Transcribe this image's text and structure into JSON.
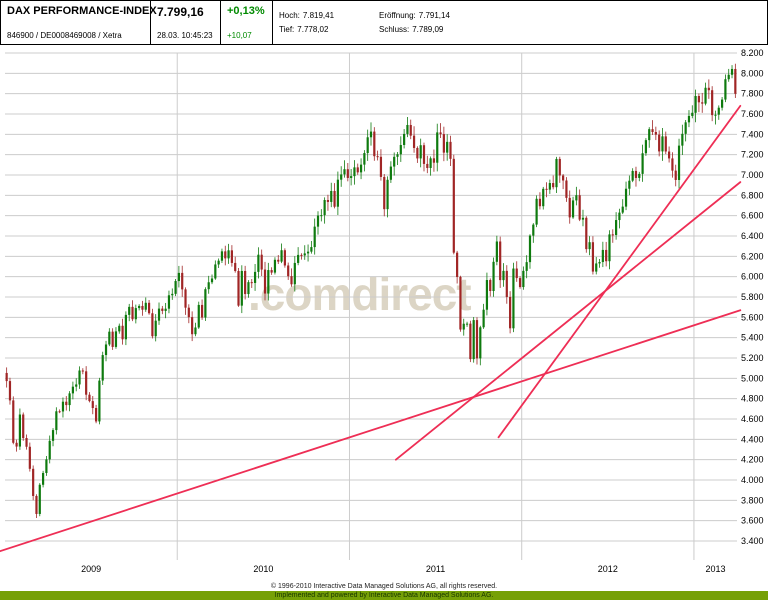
{
  "header": {
    "title": "DAX PERFORMANCE-INDEX",
    "wkn_isin": "846900 / DE0008469008 / Xetra",
    "price": "7.799,16",
    "timestamp": "28.03. 10:45:23",
    "change_pct": "+0,13%",
    "change_abs": "+10,07",
    "stats": {
      "hoch_label": "Hoch:",
      "hoch_value": "7.819,41",
      "eroeffnung_label": "Eröffnung:",
      "eroeffnung_value": "7.791,14",
      "tief_label": "Tief:",
      "tief_value": "7.778,02",
      "schluss_label": "Schluss:",
      "schluss_value": "7.789,09"
    }
  },
  "watermark": ".comdirect",
  "footer": {
    "line1": "© 1996-2010 Interactive Data Managed Solutions AG, all rights reserved.",
    "line2": "Implemented and powered by Interactive Data Managed Solutions AG."
  },
  "chart_data": {
    "type": "candlestick",
    "title": "DAX Performance-Index weekly chart 2009-2013",
    "ylim": [
      3400,
      8200
    ],
    "y_ticks": [
      8200,
      8000,
      7800,
      7600,
      7400,
      7200,
      7000,
      6800,
      6600,
      6400,
      6200,
      6000,
      5800,
      5600,
      5400,
      5200,
      5000,
      4800,
      4600,
      4400,
      4200,
      4000,
      3800,
      3600,
      3400
    ],
    "y_tick_labels": [
      "8.200",
      "8.000",
      "7.800",
      "7.600",
      "7.400",
      "7.200",
      "7.000",
      "6.800",
      "6.600",
      "6.400",
      "6.200",
      "6.000",
      "5.800",
      "5.600",
      "5.400",
      "5.200",
      "5.000",
      "4.800",
      "4.600",
      "4.400",
      "4.200",
      "4.000",
      "3.800",
      "3.600",
      "3.400"
    ],
    "year_labels": [
      "2009",
      "2010",
      "2011",
      "2012",
      "2013"
    ],
    "year_start_weeks": [
      0,
      52,
      104,
      156,
      208
    ],
    "total_weeks": 221,
    "weekly_closes": [
      4973,
      4783,
      4366,
      4329,
      4644,
      4413,
      4327,
      4110,
      3843,
      3666,
      3953,
      4069,
      4203,
      4385,
      4491,
      4676,
      4674,
      4770,
      4737,
      4852,
      4918,
      4940,
      5077,
      5069,
      4839,
      4776,
      4708,
      4576,
      4978,
      5229,
      5333,
      5459,
      5309,
      5462,
      5517,
      5384,
      5624,
      5703,
      5581,
      5691,
      5712,
      5675,
      5743,
      5640,
      5414,
      5567,
      5686,
      5663,
      5685,
      5817,
      5831,
      5957,
      6037,
      5875,
      5695,
      5602,
      5434,
      5500,
      5722,
      5598,
      5877,
      5945,
      5982,
      6120,
      6157,
      6249,
      6180,
      6259,
      6135,
      6056,
      5715,
      6056,
      5829,
      5946,
      5938,
      6047,
      6216,
      6070,
      5834,
      6065,
      6040,
      6166,
      6148,
      6260,
      6110,
      6005,
      5925,
      6135,
      6214,
      6209,
      6229,
      6246,
      6291,
      6492,
      6601,
      6605,
      6754,
      6735,
      6843,
      6688,
      6954,
      7006,
      7057,
      6971,
      6989,
      7075,
      7026,
      7102,
      7216,
      7371,
      7427,
      7185,
      7179,
      6981,
      6664,
      6953,
      7083,
      7179,
      7204,
      7295,
      7404,
      7492,
      7387,
      7266,
      7163,
      7293,
      7109,
      7069,
      7164,
      7121,
      7419,
      7402,
      7220,
      7326,
      7159,
      6236,
      5997,
      5480,
      5537,
      5538,
      5189,
      5573,
      5196,
      5502,
      5675,
      5967,
      5859,
      6146,
      6346,
      5966,
      6057,
      5800,
      5492,
      6080,
      5986,
      5898,
      6057,
      6143,
      6404,
      6512,
      6766,
      6693,
      6864,
      6856,
      6921,
      6880,
      7158,
      6995,
      6946,
      6775,
      6583,
      6750,
      6801,
      6561,
      6579,
      6271,
      6339,
      6050,
      6130,
      6144,
      6263,
      6152,
      6416,
      6410,
      6557,
      6630,
      6689,
      6865,
      6944,
      7040,
      6971,
      7011,
      7214,
      7343,
      7451,
      7423,
      7397,
      7232,
      7380,
      7231,
      7163,
      7043,
      6951,
      7289,
      7405,
      7518,
      7581,
      7612,
      7777,
      7715,
      7702,
      7858,
      7834,
      7589,
      7593,
      7662,
      7742,
      7942,
      7986,
      8043,
      7799
    ],
    "trend_lines": [
      {
        "w1": -1.5,
        "p1": 3300,
        "w2": 222,
        "p2": 5670
      },
      {
        "w1": 118,
        "p1": 4200,
        "w2": 222,
        "p2": 6930
      },
      {
        "w1": 149,
        "p1": 4420,
        "w2": 222,
        "p2": 7680
      }
    ],
    "colors": {
      "up": "#0e7a0e",
      "down": "#a02525",
      "trend": "#ee2e55",
      "grid": "#cccccc",
      "axis_text": "#000000"
    },
    "legend": "none",
    "grid": "on"
  }
}
